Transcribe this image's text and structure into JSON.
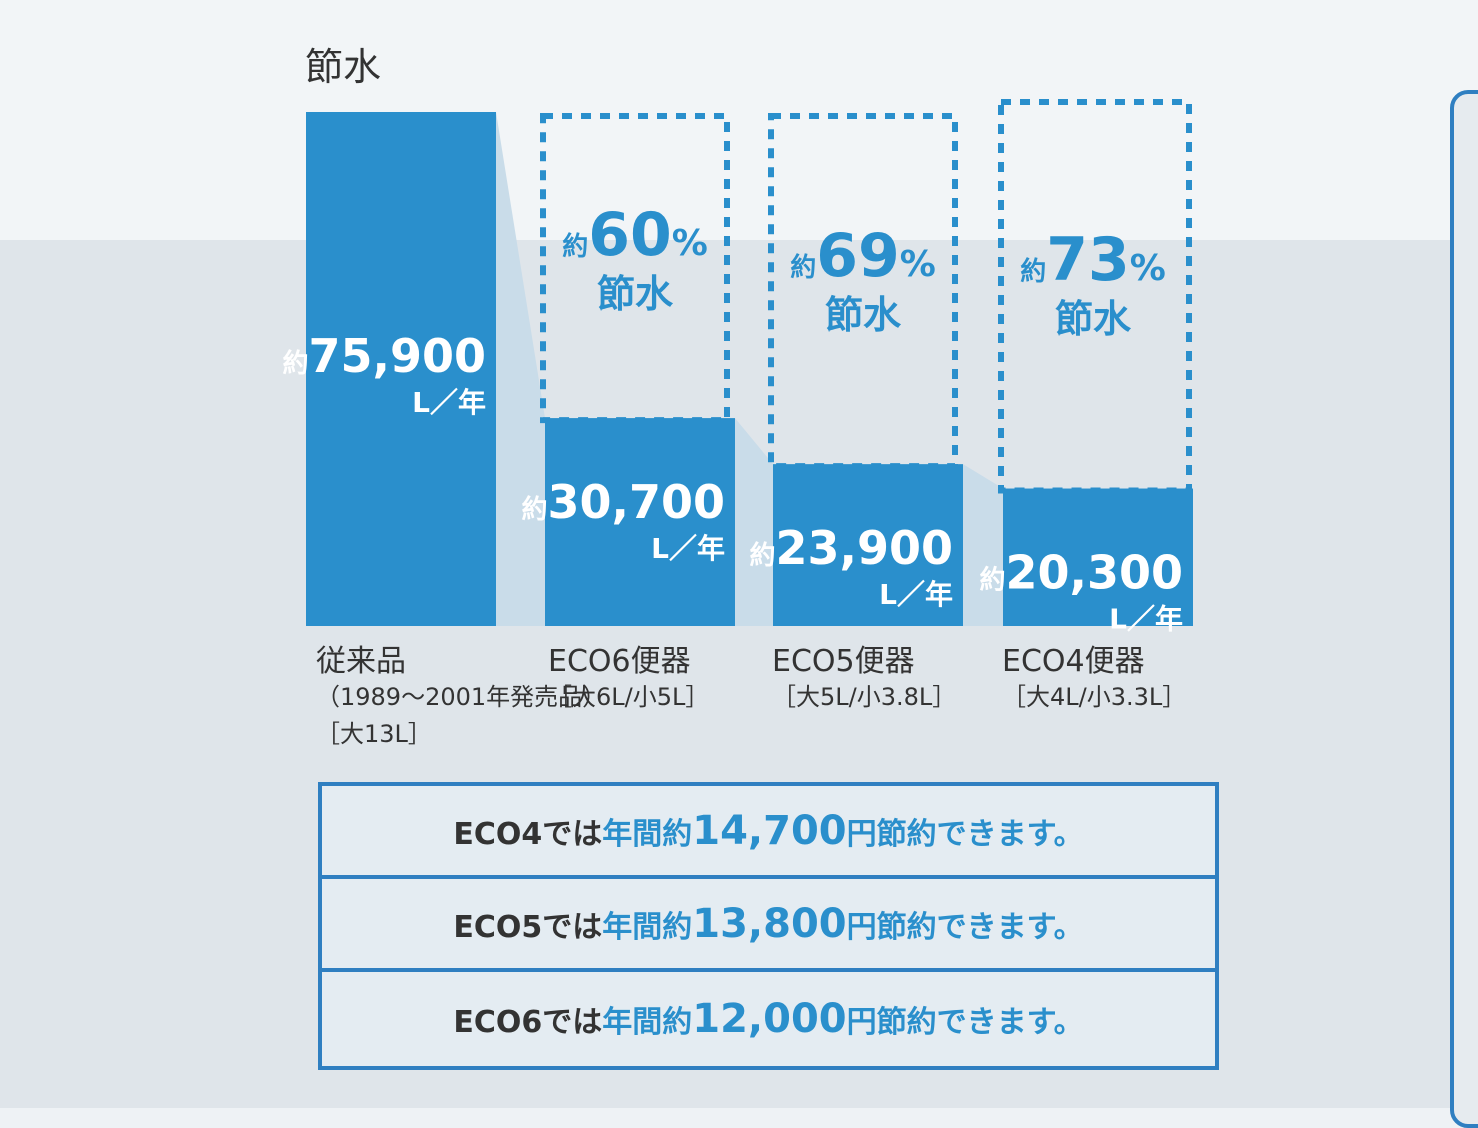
{
  "heading": "節水",
  "chart_data": {
    "type": "bar",
    "unit": "L／年",
    "prefix": "約",
    "baseline": 75900,
    "categories": [
      {
        "name": "従来品",
        "sub": "（1989～2001年発売品）",
        "spec": "［大13L］",
        "value": 75900,
        "value_label": "75,900",
        "saving_percent": null
      },
      {
        "name": "ECO6便器",
        "sub": "［大6L/小5L］",
        "spec": "",
        "value": 30700,
        "value_label": "30,700",
        "saving_percent": 60
      },
      {
        "name": "ECO5便器",
        "sub": "［大5L/小3.8L］",
        "spec": "",
        "value": 23900,
        "value_label": "23,900",
        "saving_percent": 69
      },
      {
        "name": "ECO4便器",
        "sub": "［大4L/小3.3L］",
        "spec": "",
        "value": 20300,
        "value_label": "20,300",
        "saving_percent": 73
      }
    ],
    "saving_word": "節水",
    "percent_sign": "%",
    "colors": {
      "bar": "#2a8fcc",
      "dashed": "#2a8fcc",
      "connector": "#c9dce9",
      "text_on_bar": "#ffffff",
      "saving_text": "#2a8fcc"
    }
  },
  "savings": [
    {
      "model": "ECO4",
      "pre": "では",
      "mid": "年間約",
      "amount": "14,700",
      "post": "円節約できます。"
    },
    {
      "model": "ECO5",
      "pre": "では",
      "mid": "年間約",
      "amount": "13,800",
      "post": "円節約できます。"
    },
    {
      "model": "ECO6",
      "pre": "では",
      "mid": "年間約",
      "amount": "12,000",
      "post": "円節約できます。"
    }
  ]
}
